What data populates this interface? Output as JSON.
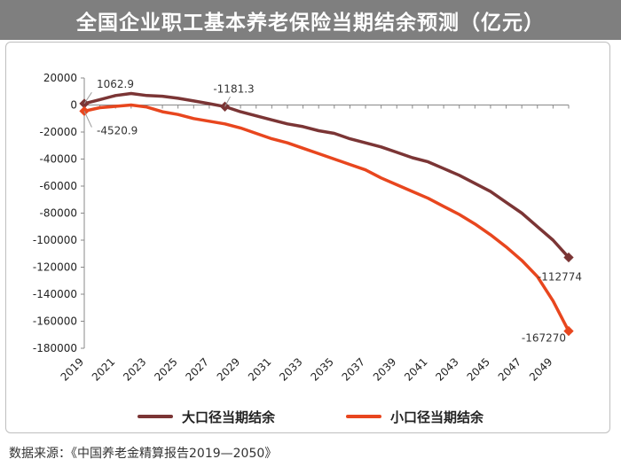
{
  "title": "全国企业职工基本养老保险当期结余预测（亿元）",
  "source": "数据来源：《中国养老金精算报告2019—2050》",
  "chart_data": {
    "type": "line",
    "y_ticks": [
      20000,
      0,
      -20000,
      -40000,
      -60000,
      -80000,
      -100000,
      -120000,
      -140000,
      -160000,
      -180000
    ],
    "ylim": [
      -180000,
      20000
    ],
    "x_tick_labels": [
      "2019",
      "2021",
      "2023",
      "2025",
      "2027",
      "2029",
      "2031",
      "2033",
      "2035",
      "2037",
      "2039",
      "2041",
      "2043",
      "2045",
      "2047",
      "2049"
    ],
    "x": [
      2019,
      2020,
      2021,
      2022,
      2023,
      2024,
      2025,
      2026,
      2027,
      2028,
      2029,
      2030,
      2031,
      2032,
      2033,
      2034,
      2035,
      2036,
      2037,
      2038,
      2039,
      2040,
      2041,
      2042,
      2043,
      2044,
      2045,
      2046,
      2047,
      2048,
      2049,
      2050
    ],
    "series": [
      {
        "name": "大口径当期结余",
        "color": "#7b3535",
        "values": [
          1062.9,
          4000,
          7000,
          8500,
          7000,
          6500,
          5000,
          3000,
          1000,
          -1181.3,
          -5000,
          -8000,
          -11000,
          -14000,
          -16000,
          -19000,
          -21000,
          -25000,
          -28000,
          -31000,
          -35000,
          -39000,
          -42000,
          -47000,
          -52000,
          -58000,
          -64000,
          -72000,
          -80000,
          -90000,
          -100000,
          -112774
        ],
        "labels": [
          {
            "x": 2019,
            "value": 1062.9,
            "text": "1062.9"
          },
          {
            "x": 2028,
            "value": -1181.3,
            "text": "-1181.3"
          },
          {
            "x": 2050,
            "value": -112774,
            "text": "-112774"
          }
        ]
      },
      {
        "name": "小口径当期结余",
        "color": "#e8461e",
        "values": [
          -4520.9,
          -2000,
          -1000,
          0,
          -1500,
          -5000,
          -7000,
          -10000,
          -12000,
          -14000,
          -17000,
          -21000,
          -25000,
          -28000,
          -32000,
          -36000,
          -40000,
          -44000,
          -48000,
          -54000,
          -59000,
          -64000,
          -69000,
          -75000,
          -81000,
          -88000,
          -96000,
          -105000,
          -115000,
          -127000,
          -145000,
          -167270
        ],
        "labels": [
          {
            "x": 2019,
            "value": -4520.9,
            "text": "-4520.9"
          },
          {
            "x": 2050,
            "value": -167270,
            "text": "-167270"
          }
        ]
      }
    ],
    "legend_position": "bottom",
    "grid": false
  }
}
